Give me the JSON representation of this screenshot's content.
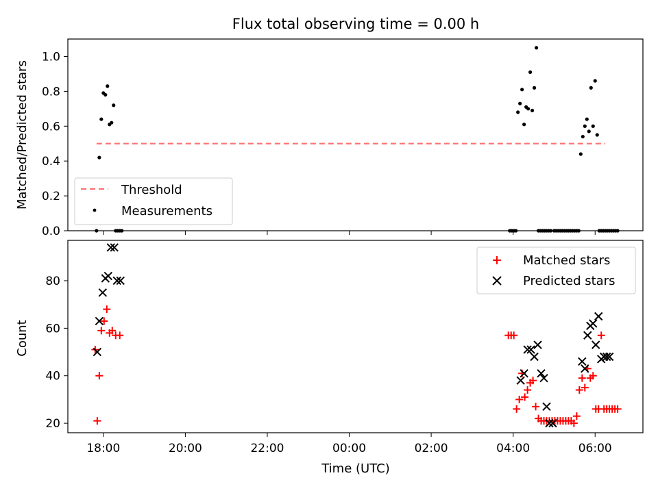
{
  "chart_data": [
    {
      "type": "scatter",
      "title": "Flux total observing time = 0.00 h",
      "xlabel": "",
      "ylabel": "Matched/Predicted stars",
      "ylim": [
        0.0,
        1.1
      ],
      "yticks": [
        "0.0",
        "0.2",
        "0.4",
        "0.6",
        "0.8",
        "1.0"
      ],
      "xlim": [
        "17:08",
        "07:10"
      ],
      "threshold": {
        "name": "Threshold",
        "value": 0.5,
        "x_range": [
          "17:50",
          "06:15"
        ],
        "color": "#ff7373"
      },
      "series": [
        {
          "name": "Measurements",
          "color": "#000000",
          "x": [
            "17:50",
            "17:54",
            "17:57",
            "18:00",
            "18:03",
            "18:06",
            "18:09",
            "18:12",
            "18:15",
            "18:18",
            "18:21",
            "18:24",
            "18:27",
            "03:55",
            "03:58",
            "04:01",
            "04:04",
            "04:07",
            "04:10",
            "04:13",
            "04:16",
            "04:19",
            "04:22",
            "04:25",
            "04:28",
            "04:31",
            "04:34",
            "04:37",
            "04:40",
            "04:43",
            "04:46",
            "04:49",
            "04:52",
            "04:55",
            "05:00",
            "05:03",
            "05:06",
            "05:09",
            "05:12",
            "05:15",
            "05:18",
            "05:21",
            "05:24",
            "05:27",
            "05:30",
            "05:33",
            "05:36",
            "05:39",
            "05:42",
            "05:45",
            "05:48",
            "05:51",
            "05:54",
            "05:57",
            "06:00",
            "06:03",
            "06:06",
            "06:09",
            "06:12",
            "06:15",
            "06:18",
            "06:21",
            "06:24",
            "06:27",
            "06:30",
            "06:33"
          ],
          "y": [
            0.0,
            0.42,
            0.64,
            0.79,
            0.78,
            0.83,
            0.61,
            0.62,
            0.72,
            0.0,
            0.0,
            0.0,
            0.0,
            0.0,
            0.0,
            0.0,
            0.0,
            0.68,
            0.73,
            0.81,
            0.61,
            0.71,
            0.7,
            0.91,
            0.69,
            0.82,
            1.05,
            0.0,
            0.0,
            0.0,
            0.0,
            0.0,
            0.0,
            0.0,
            0.0,
            0.0,
            0.0,
            0.0,
            0.0,
            0.0,
            0.0,
            0.0,
            0.0,
            0.0,
            0.0,
            0.0,
            0.0,
            0.44,
            0.54,
            0.6,
            0.64,
            0.57,
            0.82,
            0.6,
            0.86,
            0.55,
            0.0,
            0.0,
            0.0,
            0.0,
            0.0,
            0.0,
            0.0,
            0.0,
            0.0,
            0.0
          ]
        }
      ],
      "legend": {
        "position": "bottom-left",
        "entries": [
          "Threshold",
          "Measurements"
        ]
      }
    },
    {
      "type": "scatter",
      "title": "",
      "xlabel": "Time (UTC)",
      "ylabel": "Count",
      "ylim": [
        16,
        97
      ],
      "yticks": [
        "20",
        "40",
        "60",
        "80"
      ],
      "xlim": [
        "17:08",
        "07:10"
      ],
      "xticks": [
        "18:00",
        "20:00",
        "22:00",
        "00:00",
        "02:00",
        "04:00",
        "06:00"
      ],
      "series": [
        {
          "name": "Matched stars",
          "color": "#ff0000",
          "marker": "plus",
          "x": [
            "17:48",
            "17:51",
            "17:54",
            "17:57",
            "18:01",
            "18:05",
            "18:09",
            "18:13",
            "18:18",
            "18:24",
            "03:53",
            "03:57",
            "04:01",
            "04:05",
            "04:09",
            "04:13",
            "04:17",
            "04:21",
            "04:25",
            "04:29",
            "04:33",
            "04:37",
            "04:41",
            "04:45",
            "04:49",
            "04:53",
            "04:57",
            "05:01",
            "05:05",
            "05:09",
            "05:13",
            "05:17",
            "05:21",
            "05:25",
            "05:29",
            "05:33",
            "05:37",
            "05:41",
            "05:45",
            "05:49",
            "05:53",
            "05:57",
            "06:01",
            "06:05",
            "06:09",
            "06:13",
            "06:17",
            "06:21",
            "06:25",
            "06:29",
            "06:33"
          ],
          "y": [
            51,
            21,
            40,
            59,
            63,
            68,
            58,
            59,
            57,
            57,
            57,
            57,
            57,
            26,
            30,
            41,
            31,
            34,
            37,
            38,
            27,
            22,
            21,
            21,
            21,
            21,
            21,
            21,
            21,
            21,
            21,
            21,
            21,
            21,
            20,
            23,
            34,
            39,
            35,
            43,
            39,
            40,
            26,
            26,
            57,
            26,
            26,
            26,
            26,
            26,
            26
          ]
        },
        {
          "name": "Predicted stars",
          "color": "#000000",
          "marker": "x",
          "x": [
            "17:51",
            "17:54",
            "17:59",
            "18:03",
            "18:07",
            "18:11",
            "18:16",
            "18:20",
            "18:25",
            "04:11",
            "04:16",
            "04:21",
            "04:26",
            "04:31",
            "04:36",
            "04:41",
            "04:45",
            "04:49",
            "04:53",
            "04:58",
            "05:41",
            "05:45",
            "05:49",
            "05:53",
            "05:57",
            "06:01",
            "06:05",
            "06:09",
            "06:13",
            "06:17",
            "06:21"
          ],
          "y": [
            50,
            63,
            75,
            81,
            82,
            94,
            94,
            80,
            80,
            38,
            41,
            51,
            51,
            48,
            53,
            41,
            39,
            27,
            20,
            20,
            46,
            43,
            57,
            61,
            62,
            53,
            65,
            47,
            48,
            48,
            48
          ]
        }
      ],
      "legend": {
        "position": "top-right",
        "entries": [
          "Matched stars",
          "Predicted stars"
        ]
      }
    }
  ]
}
